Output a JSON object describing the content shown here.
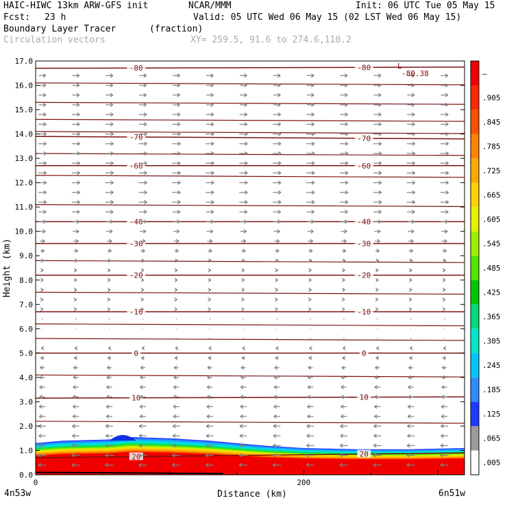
{
  "header": {
    "model_line": "HAIC-HIWC 13km ARW-GFS init",
    "org": "NCAR/MMM",
    "init": "Init: 06 UTC Tue 05 May 15",
    "fcst_label": "Fcst:",
    "fcst_value": "23 h",
    "valid": "Valid: 05 UTC Wed 06 May 15 (02 LST Wed 06 May 15)",
    "field_name": "Boundary Layer Tracer",
    "field_units": "(fraction)",
    "overlay_name": "Circulation vectors",
    "xy_text": "XY= 259.5, 91.6 to 274.6,110.2"
  },
  "chart_data": {
    "type": "heatmap",
    "title": "Boundary Layer Tracer",
    "xlabel": "Distance (km)",
    "ylabel": "Height (km)",
    "xlim": [
      0,
      320
    ],
    "ylim": [
      0,
      17
    ],
    "x_ticks": [
      {
        "value": 0,
        "label": "0"
      },
      {
        "value": 200,
        "label": "200"
      }
    ],
    "x_end_labels": {
      "left": "4n53w",
      "right": "6n51w"
    },
    "y_ticks": [
      "0.0",
      "1.0",
      "2.0",
      "3.0",
      "4.0",
      "5.0",
      "6.0",
      "7.0",
      "8.0",
      "9.0",
      "10.0",
      "11.0",
      "12.0",
      "13.0",
      "14.0",
      "15.0",
      "16.0",
      "17.0"
    ],
    "colorbar": {
      "labels": [
        ".005",
        ".065",
        ".125",
        ".185",
        ".245",
        ".305",
        ".365",
        ".425",
        ".485",
        ".545",
        ".605",
        ".665",
        ".725",
        ".785",
        ".845",
        ".905",
        "–"
      ],
      "colors": [
        "#ffffff",
        "#9b9b9b",
        "#1e3cff",
        "#2d8cff",
        "#00c8ff",
        "#00e6c8",
        "#00dc78",
        "#00c800",
        "#50e600",
        "#a0f000",
        "#e6f000",
        "#ffd200",
        "#ffaa00",
        "#ff8200",
        "#ff5000",
        "#ff2800",
        "#f00000"
      ]
    },
    "tracer_layer": {
      "top_km": [
        [
          0,
          1.3
        ],
        [
          20,
          1.4
        ],
        [
          55,
          1.45
        ],
        [
          70,
          1.55
        ],
        [
          100,
          1.5
        ],
        [
          130,
          1.4
        ],
        [
          170,
          1.2
        ],
        [
          200,
          1.1
        ],
        [
          240,
          1.05
        ],
        [
          280,
          1.05
        ],
        [
          320,
          1.1
        ]
      ],
      "bump": {
        "x_start": 55,
        "x_end": 75,
        "top_km": 1.7
      }
    },
    "temperature_contours": [
      {
        "label": "-80",
        "levels_km": [
          16.7,
          16.75
        ]
      },
      {
        "label": "-70",
        "levels_km": [
          13.9,
          13.8
        ]
      },
      {
        "label": "-60",
        "levels_km": [
          12.7,
          12.7
        ]
      },
      {
        "label": "-40",
        "levels_km": [
          10.4,
          10.4
        ]
      },
      {
        "label": "-30",
        "levels_km": [
          9.5,
          9.5
        ]
      },
      {
        "label": "-20",
        "levels_km": [
          8.2,
          8.2
        ]
      },
      {
        "label": "-10",
        "levels_km": [
          6.7,
          6.7
        ]
      },
      {
        "label": "0",
        "levels_km": [
          5.0,
          5.0
        ]
      },
      {
        "label": "10",
        "levels_km": [
          3.15,
          3.2
        ]
      },
      {
        "label": "20",
        "levels_km": [
          0.7,
          0.9
        ]
      }
    ],
    "extra_lines_km": [
      16.1,
      15.3,
      14.6,
      14.1,
      13.2,
      12.3,
      11.1,
      8.8,
      7.5,
      6.2,
      5.6,
      4.1,
      2.2
    ],
    "annotations": [
      {
        "text": "L"
      },
      {
        "text": "-80.38"
      }
    ],
    "vectors": {
      "x": [
        5,
        30,
        55,
        80,
        105,
        130,
        155,
        180,
        205,
        230,
        255,
        280,
        305
      ],
      "levels_km": [
        0.4,
        0.8,
        1.2,
        1.6,
        2.0,
        2.4,
        2.8,
        3.2,
        3.6,
        4.0,
        4.4,
        4.8,
        5.2,
        5.6,
        6.0,
        6.4,
        6.8,
        7.2,
        7.6,
        8.0,
        8.4,
        8.8,
        9.2,
        9.6,
        10.0,
        10.4,
        10.8,
        11.2,
        11.6,
        12.0,
        12.4,
        12.8,
        13.2,
        13.6,
        14.0,
        14.4,
        14.8,
        15.2,
        15.6,
        16.0,
        16.4
      ],
      "u": [
        -0.8,
        -0.8,
        -0.75,
        -0.7,
        -0.7,
        -0.6,
        -0.6,
        -0.55,
        -0.55,
        -0.5,
        -0.45,
        -0.3,
        -0.2,
        -0.1,
        0.05,
        0.1,
        0.15,
        0.15,
        0.2,
        0.2,
        0.2,
        0.3,
        0.4,
        0.5,
        0.6,
        0.7,
        0.75,
        0.8,
        0.8,
        0.8,
        0.8,
        0.8,
        0.8,
        0.8,
        0.8,
        0.75,
        0.75,
        0.7,
        0.7,
        0.7,
        0.7
      ]
    }
  }
}
